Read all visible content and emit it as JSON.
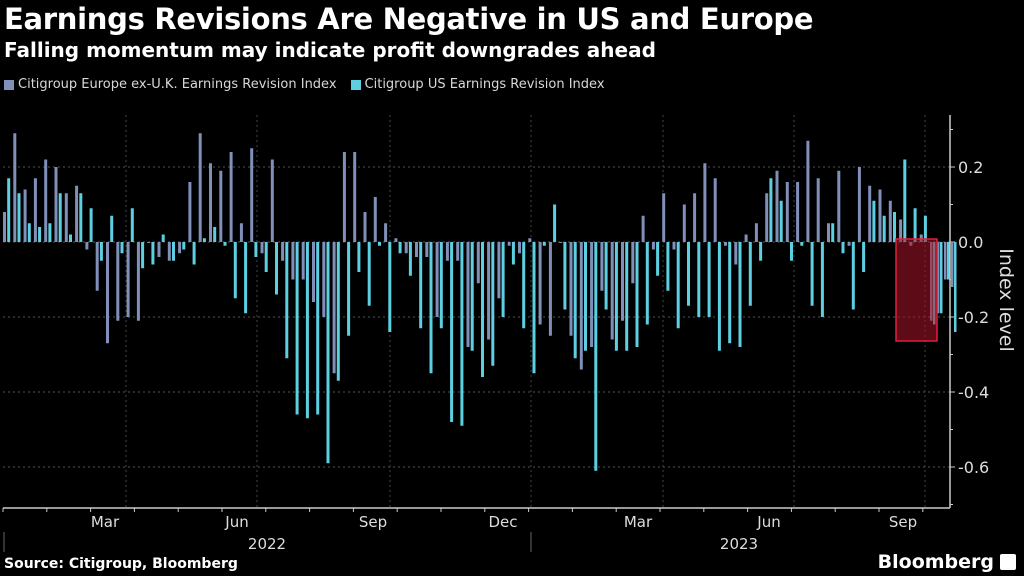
{
  "title": "Earnings Revisions Are Negative in US and Europe",
  "subtitle": "Falling momentum may indicate profit downgrades ahead",
  "source": "Source: Citigroup, Bloomberg",
  "brand": "Bloomberg",
  "chart_data": {
    "type": "bar",
    "ylabel": "Index level",
    "ylim": [
      -0.7,
      0.3
    ],
    "yticks": [
      0.2,
      0.0,
      -0.2,
      -0.4,
      -0.6
    ],
    "ytick_labels": [
      "0.2",
      "0.0",
      "-0.2",
      "-0.4",
      "-0.6"
    ],
    "x_month_labels": [
      "Mar",
      "Jun",
      "Sep",
      "Dec",
      "Mar",
      "Jun",
      "Sep"
    ],
    "x_year_labels": [
      "2022",
      "2023"
    ],
    "grid": true,
    "legend": "top-left",
    "highlight": {
      "description": "red box around latest four weeks",
      "color": "#e0203a"
    },
    "series": [
      {
        "name": "Citigroup Europe ex-U.K. Earnings Revision Index",
        "color": "#8090b8",
        "values": [
          0.08,
          0.29,
          0.14,
          0.17,
          0.22,
          0.2,
          0.13,
          0.15,
          -0.02,
          -0.13,
          -0.27,
          -0.21,
          -0.2,
          -0.21,
          0.0,
          -0.04,
          -0.05,
          -0.03,
          0.16,
          0.29,
          0.21,
          0.19,
          0.24,
          0.05,
          0.25,
          -0.03,
          0.22,
          -0.05,
          -0.1,
          -0.1,
          -0.16,
          -0.2,
          -0.35,
          0.24,
          0.24,
          0.08,
          0.12,
          0.05,
          0.01,
          -0.03,
          -0.04,
          -0.04,
          -0.2,
          -0.05,
          -0.05,
          -0.28,
          -0.11,
          -0.26,
          -0.15,
          -0.01,
          -0.03,
          0.01,
          -0.22,
          -0.25,
          0.0,
          -0.25,
          -0.34,
          -0.28,
          -0.13,
          -0.26,
          -0.21,
          -0.11,
          0.07,
          -0.02,
          0.13,
          -0.02,
          0.1,
          0.13,
          0.21,
          0.17,
          -0.01,
          -0.06,
          0.02,
          0.05,
          0.13,
          0.19,
          0.16,
          0.16,
          0.27,
          0.17,
          0.05,
          0.19,
          -0.01,
          0.2,
          0.15,
          0.14,
          0.11,
          0.06,
          -0.01,
          0.02
        ],
        "extra": []
      },
      {
        "name": "Citigroup US Earnings Revision Index",
        "color": "#5cd0e0",
        "values": [
          0.17,
          0.13,
          0.05,
          0.04,
          0.05,
          0.13,
          0.02,
          0.13,
          0.09,
          -0.05,
          0.07,
          -0.03,
          0.09,
          -0.07,
          -0.06,
          0.02,
          -0.05,
          -0.02,
          -0.06,
          0.01,
          0.04,
          -0.01,
          -0.15,
          -0.19,
          -0.04,
          -0.08,
          -0.14,
          -0.31,
          -0.46,
          -0.47,
          -0.46,
          -0.59,
          -0.37,
          -0.25,
          -0.08,
          -0.17,
          -0.01,
          -0.24,
          -0.03,
          -0.09,
          -0.23,
          -0.35,
          -0.23,
          -0.48,
          -0.49,
          -0.29,
          -0.36,
          -0.33,
          -0.2,
          -0.06,
          -0.23,
          -0.35,
          -0.01,
          0.1,
          -0.18,
          -0.31,
          -0.29,
          -0.61,
          -0.18,
          -0.29,
          -0.29,
          -0.28,
          -0.22,
          -0.09,
          -0.13,
          -0.23,
          -0.17,
          -0.2,
          -0.2,
          -0.29,
          -0.27,
          -0.28,
          -0.17,
          -0.05,
          0.17,
          0.11,
          -0.05,
          -0.01,
          -0.17,
          -0.2,
          0.05,
          -0.03,
          -0.18,
          -0.08,
          0.11,
          0.07,
          0.08,
          0.22,
          0.09,
          0.07
        ]
      }
    ],
    "highlight_series_values": {
      "Europe": [
        -0.21,
        -0.19,
        -0.1,
        -0.12
      ],
      "US": [
        -0.22,
        -0.19,
        -0.1,
        -0.24
      ]
    }
  }
}
